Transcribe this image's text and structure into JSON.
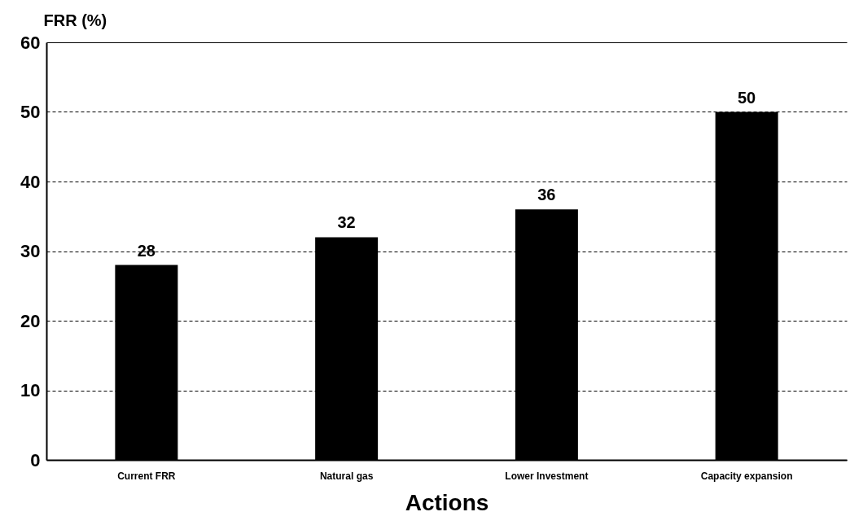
{
  "chart_data": {
    "type": "bar",
    "categories": [
      "Current FRR",
      "Natural gas",
      "Lower Investment",
      "Capacity expansion"
    ],
    "values": [
      28,
      32,
      36,
      50
    ],
    "color": "#000000",
    "ylabel": "FRR (%)",
    "xlabel": "Actions",
    "ylim": [
      0,
      60
    ],
    "yticks": [
      0,
      10,
      20,
      30,
      40,
      50,
      60
    ],
    "grid": "y",
    "data_labels": true
  }
}
